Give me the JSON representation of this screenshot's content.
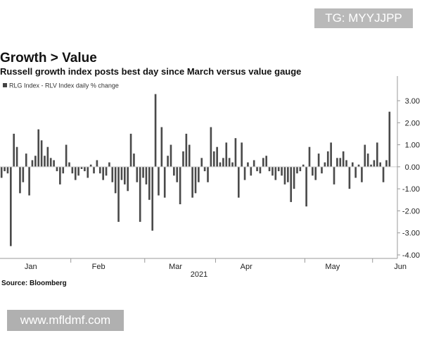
{
  "watermark_top": "TG: MYYJJPP",
  "watermark_bottom": "www.mfldmf.com",
  "chart_data": {
    "type": "bar",
    "title": "Growth > Value",
    "subtitle": "Russell growth index posts best day since March versus value gauge",
    "source": "Source: Bloomberg",
    "legend": [
      "RLG Index - RLV Index daily % change"
    ],
    "xlabel": "2021",
    "ylabel": "",
    "ylim": [
      -4.0,
      4.0
    ],
    "yticks": [
      "3.00",
      "2.00",
      "1.00",
      "0.00",
      "-1.00",
      "-2.00",
      "-3.00",
      "-4.00"
    ],
    "ytick_values": [
      3,
      2,
      1,
      0,
      -1,
      -2,
      -3,
      -4
    ],
    "month_labels": [
      "Jan",
      "Feb",
      "Mar",
      "Apr",
      "May",
      "Jun"
    ],
    "month_start_index": [
      0,
      23,
      47,
      70,
      99,
      121
    ],
    "month_label_index": [
      10,
      32,
      57,
      80,
      108,
      130
    ],
    "values": [
      -0.5,
      -0.2,
      -0.3,
      -3.6,
      1.5,
      0.9,
      -1.2,
      -0.7,
      0.6,
      -1.3,
      0.3,
      0.5,
      1.7,
      1.2,
      0.5,
      0.9,
      0.4,
      0.3,
      -0.2,
      -0.8,
      -0.3,
      1.0,
      0.2,
      -0.3,
      -0.6,
      -0.4,
      -0.1,
      -0.2,
      -0.5,
      0.1,
      -0.3,
      0.3,
      -0.3,
      -0.6,
      -0.4,
      0.2,
      -0.7,
      -1.2,
      -2.5,
      -0.6,
      -0.8,
      -1.1,
      1.5,
      0.6,
      -0.7,
      -2.5,
      -0.5,
      -0.8,
      -1.5,
      -2.9,
      3.3,
      -1.3,
      1.8,
      -1.4,
      0.5,
      1.0,
      -0.4,
      -0.7,
      -1.7,
      0.7,
      1.5,
      1.0,
      -1.4,
      -1.2,
      -0.7,
      0.4,
      -0.2,
      -0.7,
      1.8,
      0.7,
      0.9,
      0.2,
      0.4,
      1.1,
      0.4,
      0.2,
      1.3,
      -1.4,
      1.1,
      -0.6,
      0.2,
      -0.4,
      0.3,
      -0.2,
      -0.3,
      0.4,
      0.5,
      -0.2,
      -0.4,
      -0.6,
      -0.2,
      -0.4,
      -0.8,
      -0.7,
      -1.6,
      -1.0,
      -0.3,
      -0.2,
      0.1,
      -1.8,
      0.9,
      -0.4,
      -0.6,
      0.6,
      -0.3,
      0.2,
      0.7,
      1.1,
      -0.8,
      0.4,
      0.4,
      0.7,
      0.3,
      -1.0,
      0.2,
      -0.5,
      0.1,
      -0.7,
      1.0,
      0.6,
      0.1,
      0.3,
      1.1,
      0.2,
      -0.7,
      0.3,
      2.5
    ]
  }
}
